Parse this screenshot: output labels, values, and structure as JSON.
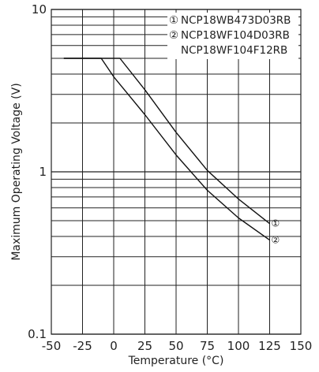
{
  "chart_data": {
    "type": "line",
    "xlabel": "Temperature (°C)",
    "ylabel": "Maximum Operating Voltage (V)",
    "x_scale": "linear",
    "y_scale": "log",
    "xlim": [
      -50,
      150
    ],
    "ylim": [
      0.1,
      10
    ],
    "x_ticks": [
      -50,
      -25,
      0,
      25,
      50,
      75,
      100,
      125,
      150
    ],
    "x_tick_labels": [
      "-50",
      "-25",
      "0",
      "25",
      "50",
      "75",
      "100",
      "125",
      "150"
    ],
    "y_ticks": [
      0.1,
      1,
      10
    ],
    "y_tick_labels": [
      "0.1",
      "1",
      "10"
    ],
    "grid": true,
    "legend_position": "top-right",
    "legend": [
      {
        "marker": "①",
        "text": "NCP18WB473D03RB"
      },
      {
        "marker": "②",
        "text": "NCP18WF104D03RB"
      },
      {
        "marker": "",
        "text": "NCP18WF104F12RB"
      }
    ],
    "series": [
      {
        "marker": "①",
        "x": [
          -40,
          5,
          25,
          50,
          75,
          100,
          125
        ],
        "y": [
          5.0,
          5.0,
          3.2,
          1.75,
          1.02,
          0.68,
          0.48
        ]
      },
      {
        "marker": "②",
        "x": [
          -40,
          -10,
          0,
          25,
          50,
          75,
          100,
          125
        ],
        "y": [
          5.0,
          5.0,
          3.85,
          2.25,
          1.27,
          0.77,
          0.52,
          0.38
        ]
      }
    ]
  }
}
